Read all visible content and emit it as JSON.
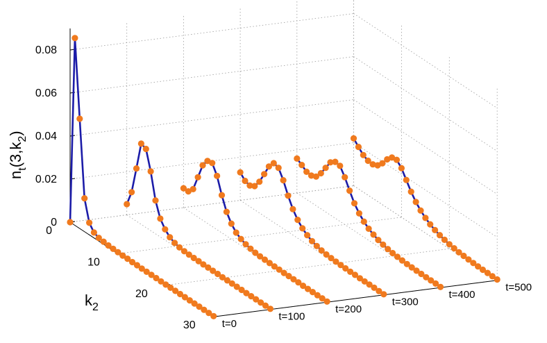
{
  "chart_data": {
    "type": "line",
    "title": "",
    "ylabel_main": "n",
    "ylabel_sub1": "t",
    "ylabel_mid": "(3,k",
    "ylabel_sub2": "2",
    "ylabel_end": ")",
    "xlabel_main": "k",
    "xlabel_sub": "2",
    "zlim": [
      0,
      0.08
    ],
    "z_ticks": [
      "0",
      "0.02",
      "0.04",
      "0.06",
      "0.08"
    ],
    "k_ticks": [
      "0",
      "10",
      "20",
      "30"
    ],
    "k_values": [
      0,
      1,
      2,
      3,
      4,
      5,
      6,
      7,
      8,
      9,
      10,
      11,
      12,
      13,
      14,
      15,
      16,
      17,
      18,
      19,
      20,
      21,
      22,
      23,
      24,
      25,
      26,
      27,
      28,
      29,
      30
    ],
    "grid": true,
    "series": [
      {
        "name": "t=0",
        "values": [
          0,
          0.087,
          0.051,
          0.0155,
          0.0056,
          0.0025,
          0.0015,
          0.0012,
          0.0009,
          0.0008,
          0.0007,
          0.0006,
          0.0006,
          0.0005,
          0.0005,
          0.0004,
          0.0004,
          0.0004,
          0.0004,
          0.0003,
          0.0003,
          0.0003,
          0.0003,
          0.0003,
          0.0003,
          0.0003,
          0.0003,
          0.0003,
          0.0003,
          0.0003,
          0.0003
        ]
      },
      {
        "name": "t=100",
        "values": [
          0.005,
          0.012,
          0.0245,
          0.0375,
          0.0365,
          0.0275,
          0.0155,
          0.0085,
          0.005,
          0.0028,
          0.0016,
          0.001,
          0.0007,
          0.0006,
          0.0005,
          0.0005,
          0.0004,
          0.0004,
          0.0004,
          0.0004,
          0.0003,
          0.0003,
          0.0003,
          0.0003,
          0.0003,
          0.0003,
          0.0003,
          0.0003,
          0.0003,
          0.0003,
          0.0003
        ]
      },
      {
        "name": "t=200",
        "values": [
          0.009,
          0.009,
          0.0115,
          0.0185,
          0.0255,
          0.029,
          0.0295,
          0.025,
          0.0175,
          0.0112,
          0.0072,
          0.0045,
          0.003,
          0.002,
          0.0014,
          0.001,
          0.0008,
          0.0007,
          0.0006,
          0.0005,
          0.0005,
          0.0004,
          0.0004,
          0.0004,
          0.0004,
          0.0003,
          0.0003,
          0.0003,
          0.0003,
          0.0003,
          0.0003
        ]
      },
      {
        "name": "t=300",
        "values": [
          0.013,
          0.0105,
          0.0098,
          0.011,
          0.0145,
          0.0195,
          0.0245,
          0.0275,
          0.0268,
          0.0225,
          0.0168,
          0.012,
          0.0085,
          0.006,
          0.0043,
          0.003,
          0.0022,
          0.0016,
          0.0012,
          0.001,
          0.0008,
          0.0007,
          0.0006,
          0.0005,
          0.0005,
          0.0004,
          0.0004,
          0.0004,
          0.0004,
          0.0003,
          0.0003
        ]
      },
      {
        "name": "t=400",
        "values": [
          0.016,
          0.0145,
          0.0128,
          0.0125,
          0.0135,
          0.0165,
          0.0205,
          0.0245,
          0.0262,
          0.0258,
          0.022,
          0.0172,
          0.0128,
          0.0096,
          0.0072,
          0.0054,
          0.0041,
          0.0031,
          0.0024,
          0.0018,
          0.0014,
          0.0011,
          0.0009,
          0.0007,
          0.0006,
          0.0005,
          0.0005,
          0.0004,
          0.0004,
          0.0004,
          0.0003
        ]
      },
      {
        "name": "t=500",
        "values": [
          0.022,
          0.0195,
          0.0172,
          0.016,
          0.0158,
          0.0168,
          0.0192,
          0.0225,
          0.0248,
          0.0252,
          0.0228,
          0.0188,
          0.0148,
          0.0115,
          0.009,
          0.007,
          0.0055,
          0.0043,
          0.0034,
          0.0027,
          0.0021,
          0.0017,
          0.0013,
          0.0011,
          0.0009,
          0.0007,
          0.0006,
          0.0005,
          0.0005,
          0.0004,
          0.0004
        ]
      }
    ],
    "colors": {
      "line": "#1c1ca8",
      "marker": "#f07a1e"
    }
  }
}
